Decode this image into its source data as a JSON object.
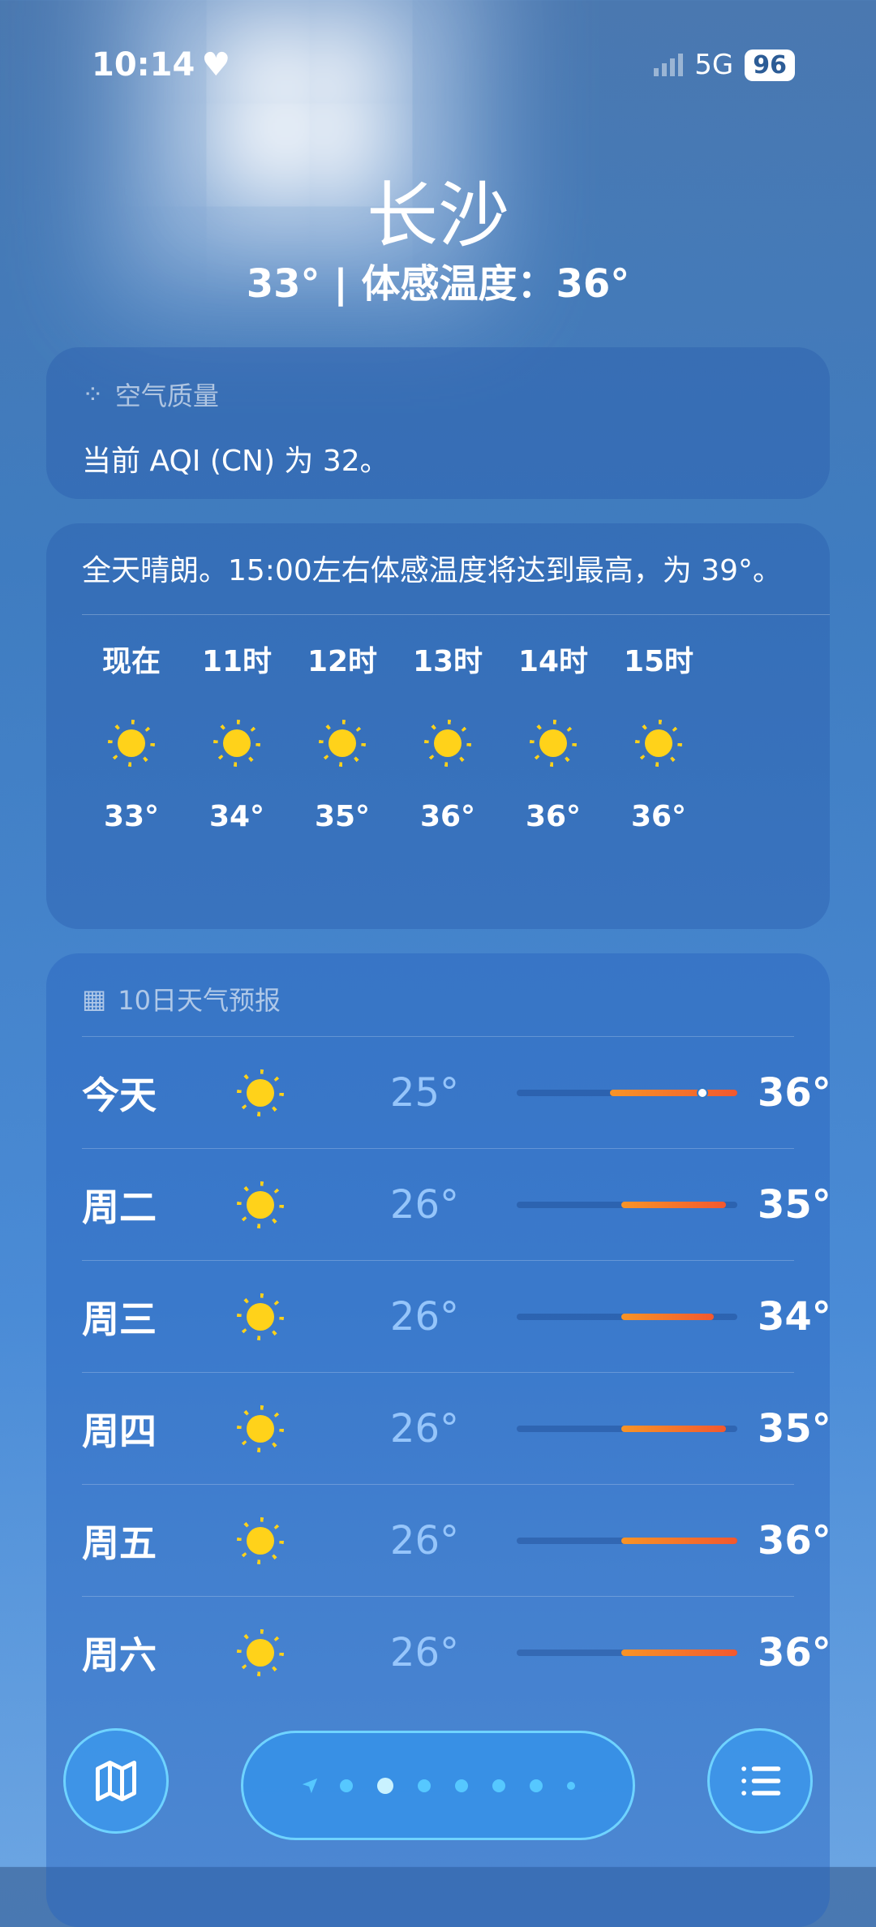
{
  "status": {
    "time": "10:14",
    "network": "5G",
    "battery": "96"
  },
  "header": {
    "city": "长沙",
    "summary": "33° | 体感温度：36°"
  },
  "aqi": {
    "title": "空气质量",
    "text": "当前 AQI (CN) 为 32。"
  },
  "hourly": {
    "summary": "全天晴朗。15:00左右体感温度将达到最高，为 39°。",
    "items": [
      {
        "label": "现在",
        "temp": "33°",
        "icon": "sun-icon"
      },
      {
        "label": "11时",
        "temp": "34°",
        "icon": "sun-icon"
      },
      {
        "label": "12时",
        "temp": "35°",
        "icon": "sun-icon"
      },
      {
        "label": "13时",
        "temp": "36°",
        "icon": "sun-icon"
      },
      {
        "label": "14时",
        "temp": "36°",
        "icon": "sun-icon"
      },
      {
        "label": "15时",
        "temp": "36°",
        "icon": "sun-icon"
      }
    ]
  },
  "daily": {
    "title": "10日天气预报",
    "range": [
      17,
      36
    ],
    "current": 33,
    "items": [
      {
        "day": "今天",
        "low": "25°",
        "high": "36°",
        "lo": 25,
        "hi": 36,
        "icon": "sun-icon"
      },
      {
        "day": "周二",
        "low": "26°",
        "high": "35°",
        "lo": 26,
        "hi": 35,
        "icon": "sun-icon"
      },
      {
        "day": "周三",
        "low": "26°",
        "high": "34°",
        "lo": 26,
        "hi": 34,
        "icon": "sun-icon"
      },
      {
        "day": "周四",
        "low": "26°",
        "high": "35°",
        "lo": 26,
        "hi": 35,
        "icon": "sun-icon"
      },
      {
        "day": "周五",
        "low": "26°",
        "high": "36°",
        "lo": 26,
        "hi": 36,
        "icon": "sun-icon"
      },
      {
        "day": "周六",
        "low": "26°",
        "high": "36°",
        "lo": 26,
        "hi": 36,
        "icon": "sun-icon"
      }
    ]
  },
  "toolbar": {
    "pages": 7,
    "active_page": 1
  }
}
